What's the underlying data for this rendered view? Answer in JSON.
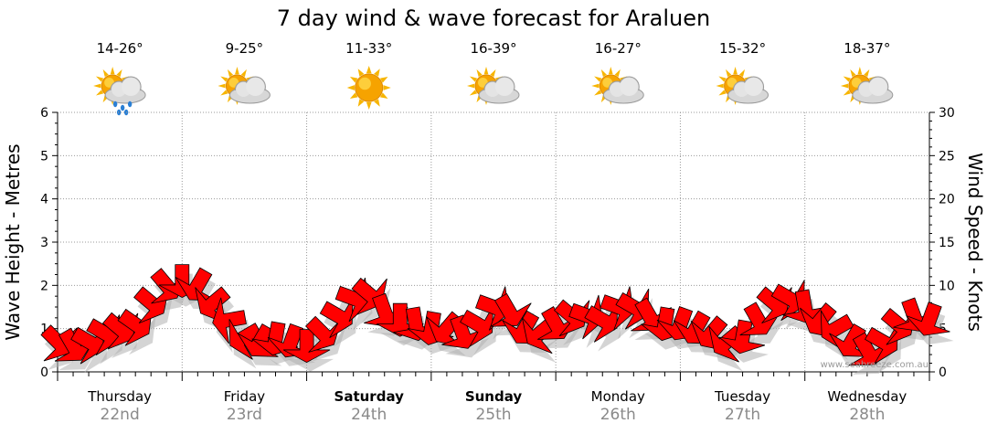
{
  "title": "7 day wind & wave forecast for Araluen",
  "ylabel_left": "Wave Height - Metres",
  "ylabel_right": "Wind Speed - Knots",
  "credit": "www.seabreeze.com.au",
  "days": [
    {
      "name": "Thursday",
      "date": "22nd",
      "temp": "14-26°",
      "icon": "sun-cloud-rain-icon",
      "bold": false
    },
    {
      "name": "Friday",
      "date": "23rd",
      "temp": "9-25°",
      "icon": "sun-cloud-icon",
      "bold": false
    },
    {
      "name": "Saturday",
      "date": "24th",
      "temp": "11-33°",
      "icon": "sun-icon",
      "bold": true
    },
    {
      "name": "Sunday",
      "date": "25th",
      "temp": "16-39°",
      "icon": "sun-cloud-icon",
      "bold": true
    },
    {
      "name": "Monday",
      "date": "26th",
      "temp": "16-27°",
      "icon": "sun-cloud-icon",
      "bold": false
    },
    {
      "name": "Tuesday",
      "date": "27th",
      "temp": "15-32°",
      "icon": "sun-cloud-icon",
      "bold": false
    },
    {
      "name": "Wednesday",
      "date": "28th",
      "temp": "18-37°",
      "icon": "sun-cloud-icon",
      "bold": false
    }
  ],
  "colors": {
    "arrow_fill": "#ff0000",
    "arrow_stroke": "#000000",
    "shadow": "#b0b0b0",
    "grid": "#999999"
  },
  "chart_data": {
    "type": "line",
    "x_unit": "hours",
    "y_left": {
      "label": "Wave Height - Metres",
      "min": 0,
      "max": 6,
      "ticks": [
        0,
        1,
        2,
        3,
        4,
        5,
        6
      ]
    },
    "y_right": {
      "label": "Wind Speed - Knots",
      "min": 0,
      "max": 30,
      "ticks": [
        0,
        5,
        10,
        15,
        20,
        25,
        30
      ]
    },
    "grid": true,
    "series": [
      {
        "name": "Wind Speed - Knots",
        "marker": "arrow",
        "x": [
          0,
          3,
          6,
          9,
          12,
          15,
          18,
          21,
          24,
          27,
          30,
          33,
          36,
          39,
          42,
          45,
          48,
          51,
          54,
          57,
          60,
          63,
          66,
          69,
          72,
          75,
          78,
          81,
          84,
          87,
          90,
          93,
          96,
          99,
          102,
          105,
          108,
          111,
          114,
          117,
          120,
          123,
          126,
          129,
          132,
          135,
          138,
          141,
          144,
          147,
          150,
          153,
          156,
          159,
          162,
          165,
          168
        ],
        "values": [
          3.5,
          3,
          3.5,
          4.5,
          5,
          5.5,
          8,
          10,
          10.5,
          10,
          8,
          6,
          4,
          3.5,
          3.8,
          3.5,
          3,
          4.5,
          6.5,
          8.5,
          9,
          7,
          6,
          5.5,
          5,
          5,
          4.5,
          5.5,
          7.5,
          7,
          5,
          4.5,
          5.5,
          6.5,
          6.5,
          6,
          7.5,
          7.5,
          6.5,
          5.5,
          5.5,
          5,
          4.5,
          3.5,
          4,
          6,
          8,
          8.5,
          7.5,
          6,
          5,
          3.5,
          2.5,
          3.5,
          5.5,
          6.5,
          6
        ],
        "direction_deg": [
          45,
          60,
          30,
          30,
          40,
          35,
          40,
          50,
          90,
          120,
          140,
          170,
          150,
          120,
          100,
          110,
          90,
          45,
          30,
          20,
          40,
          70,
          90,
          80,
          100,
          130,
          70,
          30,
          20,
          60,
          120,
          140,
          60,
          40,
          20,
          30,
          20,
          30,
          60,
          100,
          110,
          120,
          130,
          140,
          100,
          60,
          40,
          30,
          80,
          130,
          150,
          120,
          60,
          30,
          40,
          70,
          110
        ]
      }
    ]
  }
}
